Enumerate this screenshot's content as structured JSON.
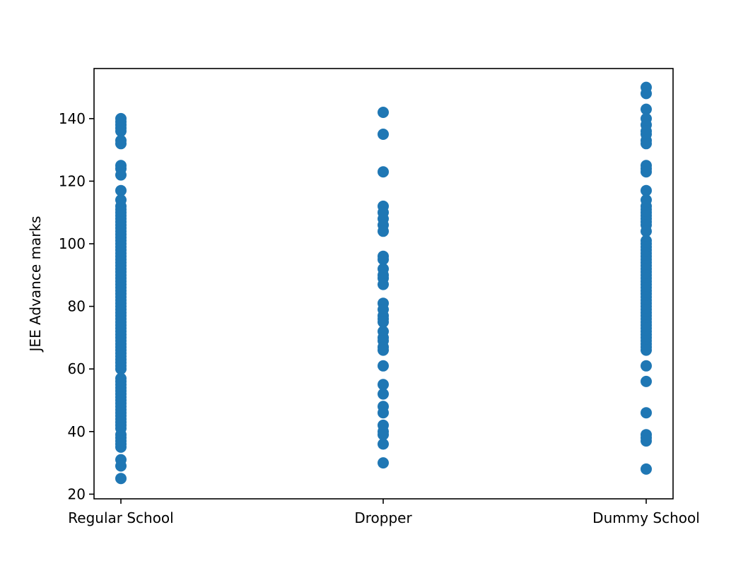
{
  "chart_data": {
    "type": "scatter",
    "title": "",
    "xlabel": "",
    "ylabel": "JEE Advance marks",
    "categories": [
      "Regular School",
      "Dropper",
      "Dummy School"
    ],
    "yticks": [
      20,
      40,
      60,
      80,
      100,
      120,
      140
    ],
    "ylim": [
      18.5,
      156
    ],
    "grid": false,
    "legend": "none",
    "marker_color": "#1f77b4",
    "series": [
      {
        "category": "Regular School",
        "values": [
          140,
          139,
          138,
          137,
          136,
          133,
          132,
          125,
          124,
          122,
          117,
          114,
          112,
          111,
          110,
          109,
          108,
          107,
          106,
          105,
          104,
          103,
          102,
          101,
          100,
          99,
          98,
          97,
          96,
          95,
          94,
          93,
          92,
          91,
          90,
          89,
          88,
          87,
          86,
          85,
          84,
          83,
          82,
          81,
          80,
          79,
          78,
          77,
          76,
          75,
          74,
          73,
          72,
          71,
          70,
          69,
          68,
          67,
          66,
          65,
          64,
          63,
          62,
          61,
          60,
          57,
          56,
          55,
          54,
          53,
          52,
          51,
          50,
          49,
          48,
          47,
          46,
          45,
          44,
          43,
          42,
          41,
          39,
          38,
          37,
          36,
          35,
          31,
          29,
          25
        ]
      },
      {
        "category": "Dropper",
        "values": [
          142,
          135,
          123,
          112,
          110,
          108,
          106,
          104,
          96,
          95,
          92,
          90,
          89,
          87,
          81,
          79,
          77,
          76,
          75,
          72,
          70,
          69,
          67,
          66,
          61,
          55,
          52,
          48,
          46,
          42,
          40,
          39,
          36,
          30
        ]
      },
      {
        "category": "Dummy School",
        "values": [
          150,
          148,
          143,
          140,
          138,
          136,
          135,
          133,
          132,
          125,
          124,
          123,
          117,
          114,
          112,
          111,
          110,
          109,
          108,
          107,
          106,
          104,
          101,
          100,
          99,
          98,
          97,
          96,
          95,
          94,
          93,
          92,
          91,
          90,
          89,
          88,
          87,
          86,
          85,
          84,
          83,
          82,
          81,
          80,
          79,
          78,
          77,
          76,
          75,
          74,
          73,
          72,
          71,
          70,
          69,
          68,
          67,
          66,
          61,
          56,
          46,
          39,
          38,
          37,
          28
        ]
      }
    ]
  }
}
